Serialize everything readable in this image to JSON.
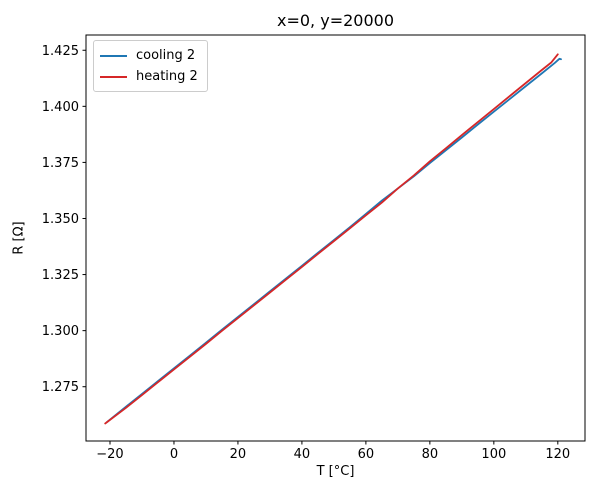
{
  "figure": {
    "background": "#ffffff",
    "text_color": "#000000",
    "spine_color": "#000000"
  },
  "chart_data": {
    "type": "line",
    "title": "x=0, y=20000",
    "xlabel": "T [°C]",
    "ylabel": "R [Ω]",
    "xlim": [
      -27.5,
      128.5
    ],
    "ylim": [
      1.2508,
      1.4318
    ],
    "grid": false,
    "legend_position": "upper left",
    "xticks": {
      "values": [
        -20,
        0,
        20,
        40,
        60,
        80,
        100,
        120
      ],
      "labels": [
        "−20",
        "0",
        "20",
        "40",
        "60",
        "80",
        "100",
        "120"
      ]
    },
    "yticks": {
      "values": [
        1.275,
        1.3,
        1.325,
        1.35,
        1.375,
        1.4,
        1.425
      ],
      "labels": [
        "1.275",
        "1.300",
        "1.325",
        "1.350",
        "1.375",
        "1.400",
        "1.425"
      ]
    },
    "series": [
      {
        "name": "cooling 2",
        "color": "#1f77b4",
        "x": [
          -21,
          -15,
          -10,
          -5,
          0,
          5,
          10,
          15,
          20,
          25,
          30,
          35,
          40,
          45,
          50,
          55,
          60,
          65,
          70,
          75,
          80,
          85,
          90,
          95,
          100,
          105,
          110,
          115,
          119,
          120.5,
          121
        ],
        "y": [
          1.2592,
          1.2661,
          1.2718,
          1.2775,
          1.2832,
          1.2889,
          1.2946,
          1.3004,
          1.3061,
          1.3118,
          1.3175,
          1.3232,
          1.3289,
          1.3347,
          1.3404,
          1.3461,
          1.352,
          1.358,
          1.3634,
          1.3688,
          1.3747,
          1.3804,
          1.3861,
          1.3919,
          1.3976,
          1.4033,
          1.409,
          1.4147,
          1.4193,
          1.4212,
          1.421
        ]
      },
      {
        "name": "heating 2",
        "color": "#d62728",
        "x": [
          -21.5,
          -15,
          -10,
          -5,
          0,
          5,
          10,
          15,
          20,
          25,
          30,
          35,
          40,
          45,
          50,
          55,
          60,
          65,
          70,
          75,
          80,
          85,
          90,
          95,
          100,
          105,
          110,
          115,
          118,
          120
        ],
        "y": [
          1.2586,
          1.2656,
          1.2713,
          1.277,
          1.2827,
          1.2884,
          1.2941,
          1.2999,
          1.3056,
          1.3113,
          1.317,
          1.3227,
          1.3284,
          1.3342,
          1.3399,
          1.3456,
          1.3514,
          1.3571,
          1.3634,
          1.3692,
          1.3755,
          1.3813,
          1.3872,
          1.393,
          1.3988,
          1.4046,
          1.4104,
          1.4162,
          1.4196,
          1.4232
        ]
      }
    ]
  }
}
